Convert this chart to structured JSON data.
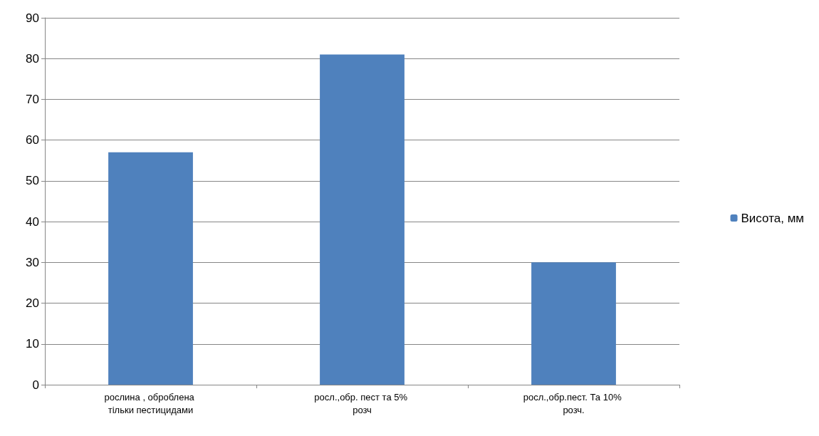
{
  "chart_data": {
    "type": "bar",
    "categories": [
      "рослина , оброблена тільки пестицидами",
      "росл.,обр. пест та 5% розч",
      "росл.,обр.пест. Та 10% розч."
    ],
    "series": [
      {
        "name": "Висота, мм",
        "color": "#4f81bd",
        "values": [
          57,
          81,
          30
        ]
      }
    ],
    "ylim": [
      0,
      90
    ],
    "yticks": [
      0,
      10,
      20,
      30,
      40,
      50,
      60,
      70,
      80,
      90
    ],
    "grid": "y",
    "legend": "right"
  }
}
